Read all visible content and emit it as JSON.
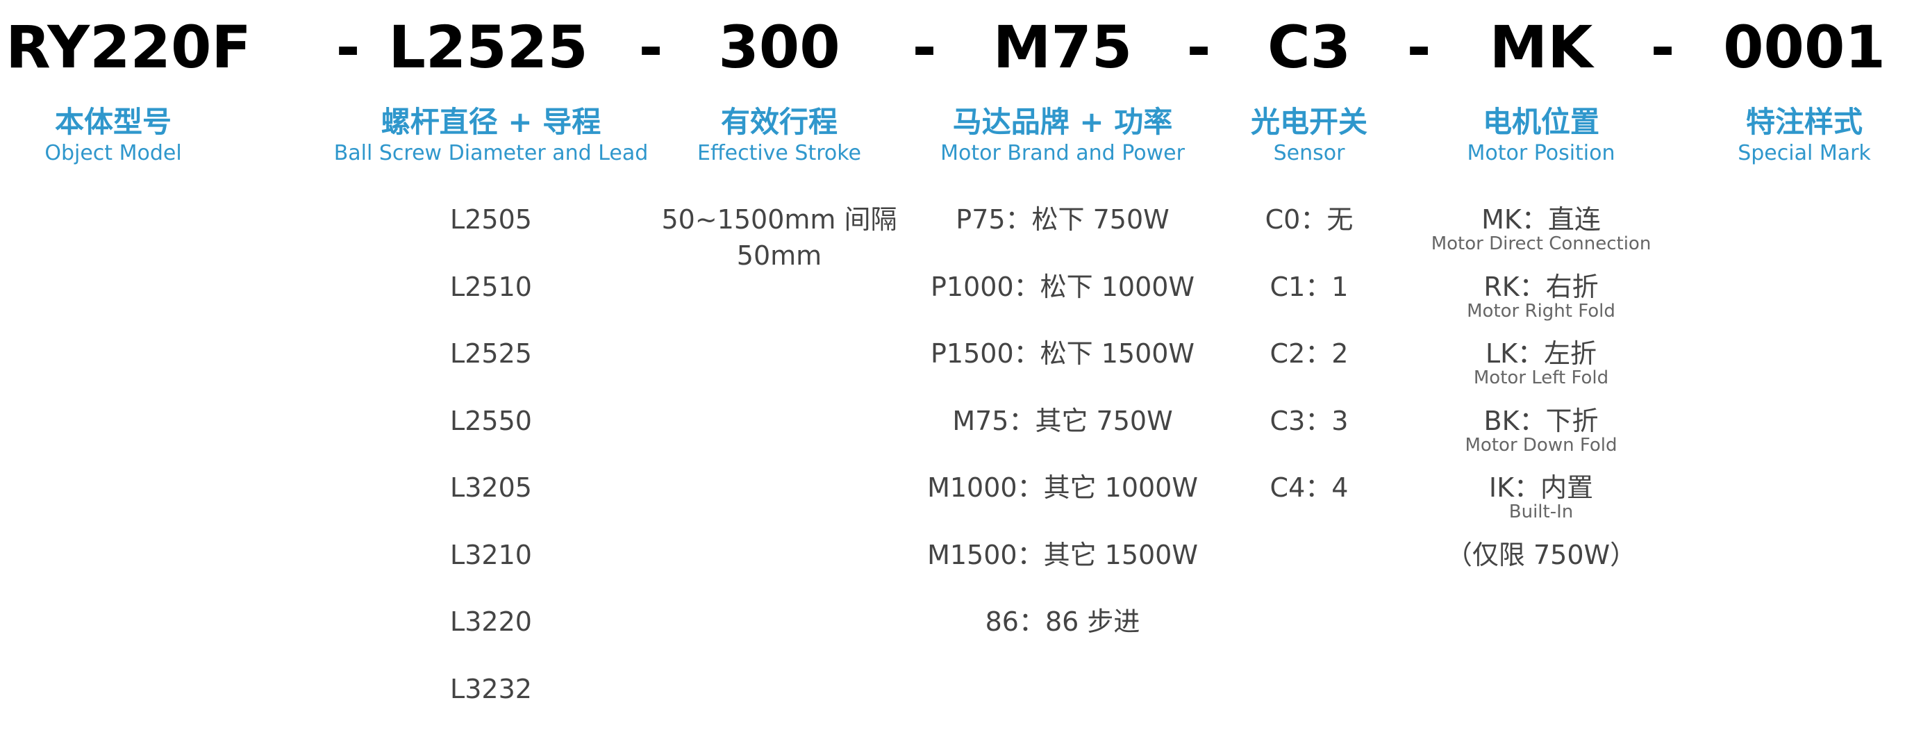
{
  "code": [
    "RY220F",
    "-",
    "L2525",
    "-",
    "300",
    "-",
    "M75",
    "-",
    "C3",
    "-",
    "MK",
    "-",
    "0001"
  ],
  "headers": [
    {
      "cn": "本体型号",
      "en": "Object Model"
    },
    {
      "cn": "螺杆直径 + 导程",
      "en": "Ball Screw Diameter and Lead"
    },
    {
      "cn": "有效行程",
      "en": "Effective Stroke"
    },
    {
      "cn": "马达品牌 + 功率",
      "en": "Motor Brand and Power"
    },
    {
      "cn": "光电开关",
      "en": "Sensor"
    },
    {
      "cn": "电机位置",
      "en": "Motor Position"
    },
    {
      "cn": "特注样式",
      "en": "Special Mark"
    }
  ],
  "screw": [
    "L2505",
    "L2510",
    "L2525",
    "L2550",
    "L3205",
    "L3210",
    "L3220",
    "L3232"
  ],
  "stroke": [
    "50~1500mm 间隔",
    "50mm"
  ],
  "motor": [
    "P75：松下 750W",
    "P1000：松下 1000W",
    "P1500：松下 1500W",
    "M75：其它 750W",
    "M1000：其它 1000W",
    "M1500：其它 1500W",
    "86：86 步进"
  ],
  "sensor": [
    "C0：无",
    "C1：1",
    "C2：2",
    "C3：3",
    "C4：4"
  ],
  "position": [
    {
      "cn": "MK：直连",
      "en": "Motor Direct Connection"
    },
    {
      "cn": "RK：右折",
      "en": "Motor Right Fold"
    },
    {
      "cn": "LK：左折",
      "en": "Motor Left Fold"
    },
    {
      "cn": "BK：下折",
      "en": "Motor Down Fold"
    },
    {
      "cn": "IK：内置",
      "en": "Built-In"
    }
  ],
  "position_note": "（仅限 750W）",
  "colors": {
    "accent": "#2f97cc",
    "text": "#444444"
  }
}
